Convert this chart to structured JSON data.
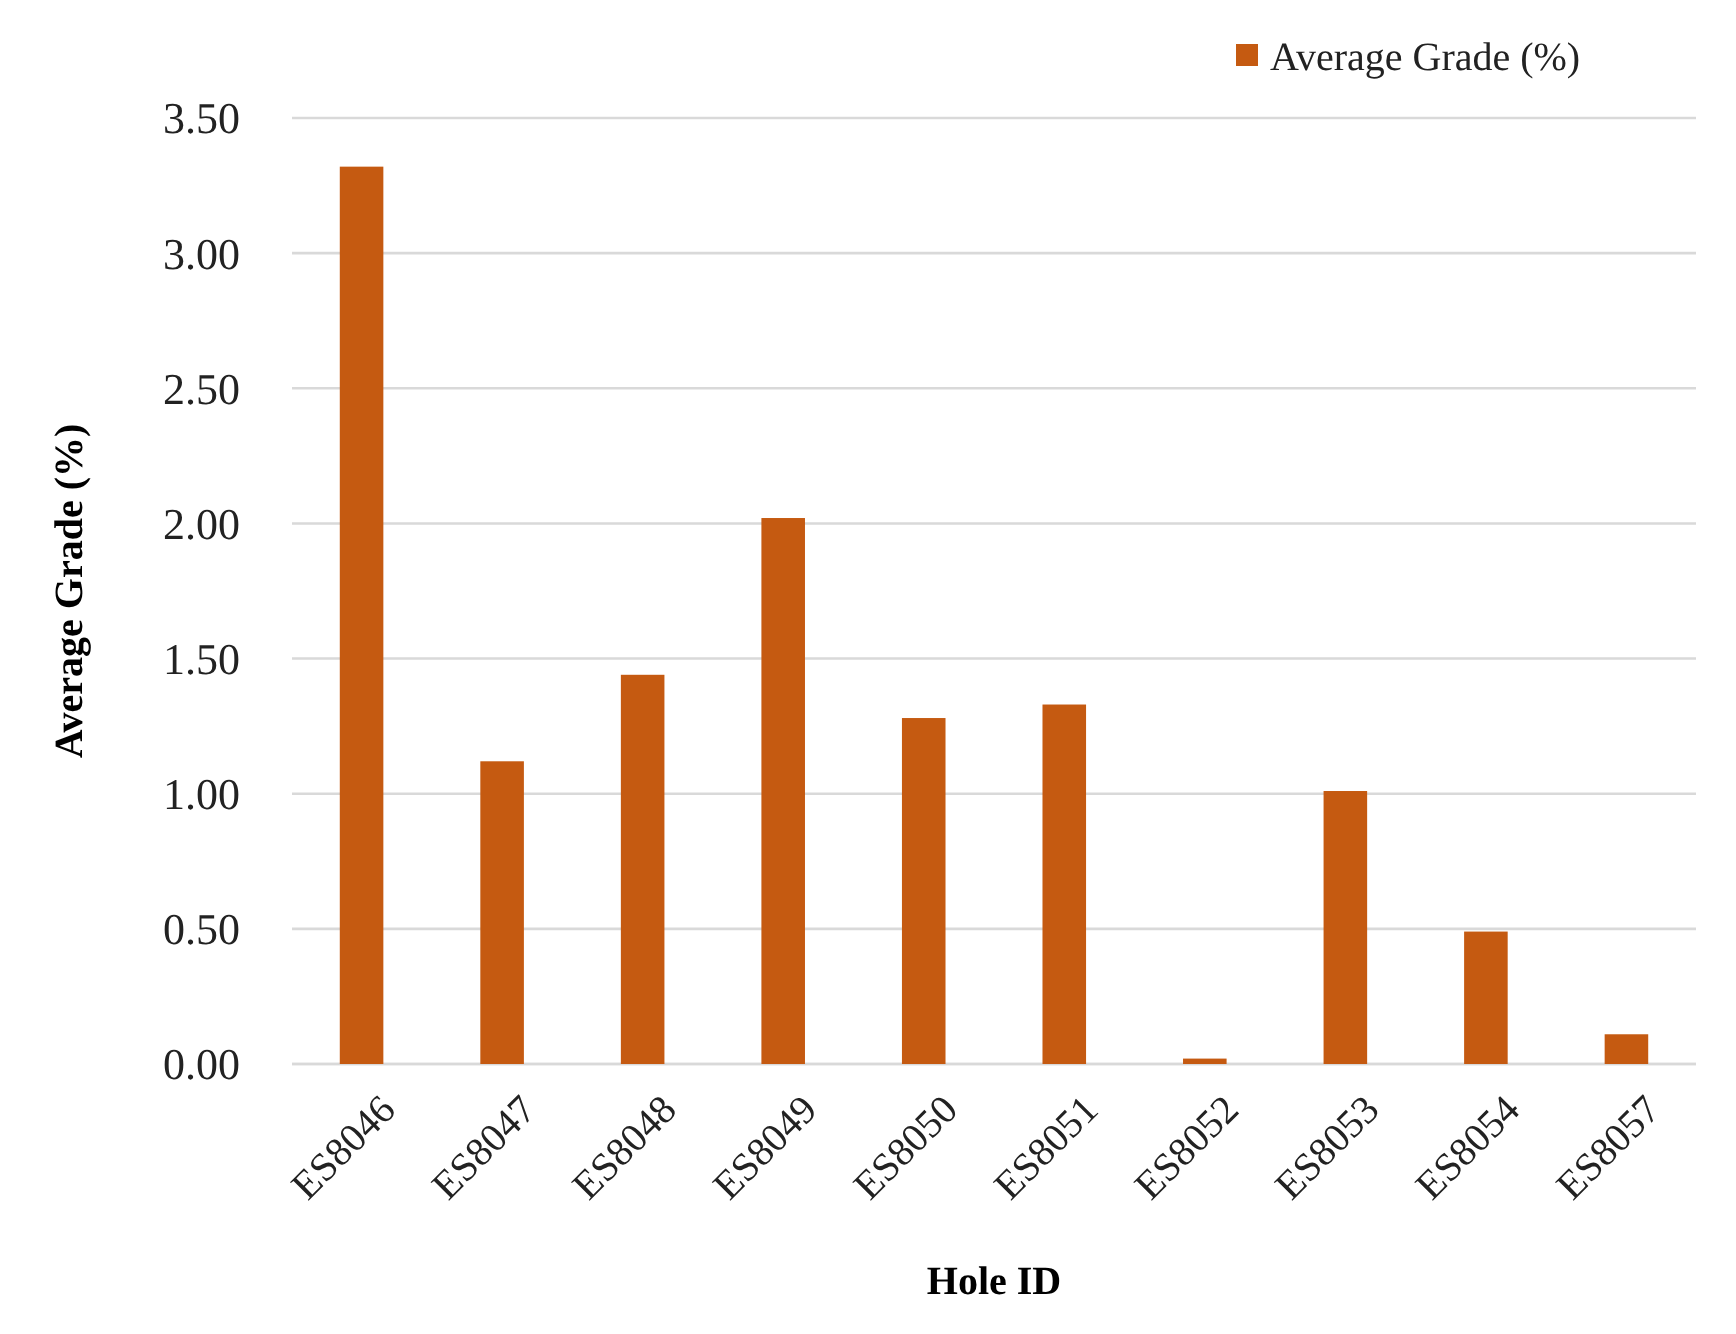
{
  "chart_data": {
    "type": "bar",
    "xlabel": "Hole ID",
    "ylabel": "Average Grade (%)",
    "categories": [
      "ES8046",
      "ES8047",
      "ES8048",
      "ES8049",
      "ES8050",
      "ES8051",
      "ES8052",
      "ES8053",
      "ES8054",
      "ES8057"
    ],
    "series": [
      {
        "name": "Average Grade (%)",
        "color": "#c55a11",
        "values": [
          3.32,
          1.12,
          1.44,
          2.02,
          1.28,
          1.33,
          0.02,
          1.01,
          0.49,
          0.11
        ]
      }
    ],
    "ylim": [
      0,
      3.5
    ],
    "yticks": [
      {
        "value": 0,
        "label": "0.00"
      },
      {
        "value": 0.5,
        "label": "0.50"
      },
      {
        "value": 1,
        "label": "1.00"
      },
      {
        "value": 1.5,
        "label": "1.50"
      },
      {
        "value": 2,
        "label": "2.00"
      },
      {
        "value": 2.5,
        "label": "2.50"
      },
      {
        "value": 3,
        "label": "3.00"
      },
      {
        "value": 3.5,
        "label": "3.50"
      }
    ],
    "grid": "y",
    "legend": "top right"
  }
}
